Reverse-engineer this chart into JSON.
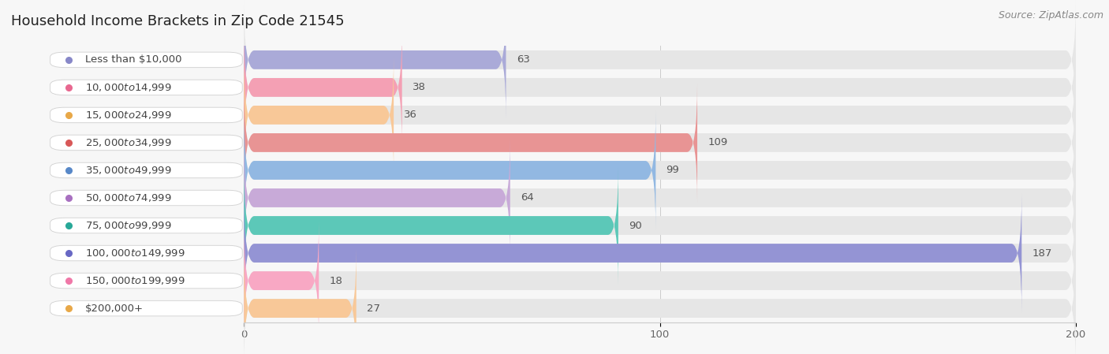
{
  "title": "Household Income Brackets in Zip Code 21545",
  "source": "Source: ZipAtlas.com",
  "categories": [
    "Less than $10,000",
    "$10,000 to $14,999",
    "$15,000 to $24,999",
    "$25,000 to $34,999",
    "$35,000 to $49,999",
    "$50,000 to $74,999",
    "$75,000 to $99,999",
    "$100,000 to $149,999",
    "$150,000 to $199,999",
    "$200,000+"
  ],
  "values": [
    63,
    38,
    36,
    109,
    99,
    64,
    90,
    187,
    18,
    27
  ],
  "bar_colors": [
    "#aaaad8",
    "#f4a0b4",
    "#f8c898",
    "#e89494",
    "#92b8e2",
    "#c8aad8",
    "#5cc8b8",
    "#9494d4",
    "#f8a8c4",
    "#f8c898"
  ],
  "dot_colors": [
    "#8888c8",
    "#e86890",
    "#e8a848",
    "#d85858",
    "#5888c8",
    "#a870c0",
    "#28a898",
    "#6868c4",
    "#f078a8",
    "#e8a848"
  ],
  "xlim": [
    0,
    200
  ],
  "xticks": [
    0,
    100,
    200
  ],
  "background_color": "#f7f7f7",
  "bar_bg_color": "#e6e6e6",
  "title_fontsize": 13,
  "label_fontsize": 9.5,
  "value_fontsize": 9.5,
  "source_fontsize": 9
}
